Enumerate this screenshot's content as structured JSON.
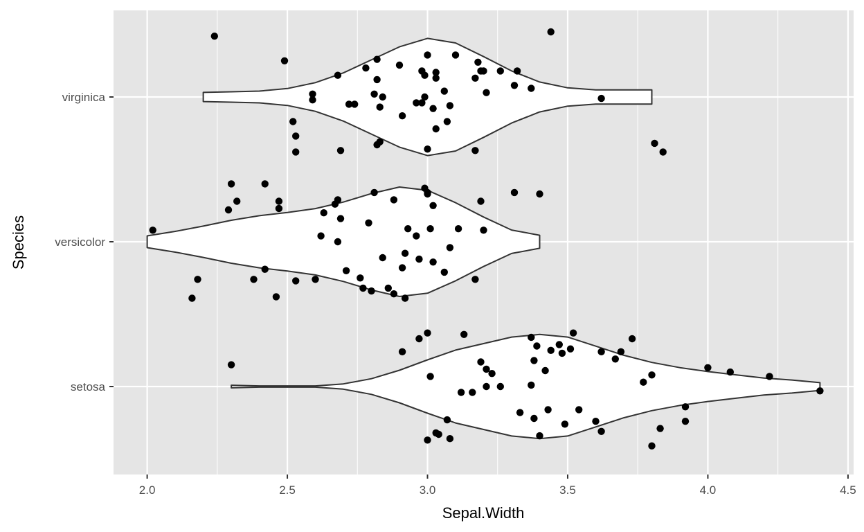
{
  "chart_data": {
    "type": "violin",
    "orientation": "horizontal",
    "title": "",
    "xlabel": "Sepal.Width",
    "ylabel": "Species",
    "xlim": [
      1.88,
      4.52
    ],
    "x_ticks": [
      2.0,
      2.5,
      3.0,
      3.5,
      4.0,
      4.5
    ],
    "x_tick_labels": [
      "2.0",
      "2.5",
      "3.0",
      "3.5",
      "4.0",
      "4.5"
    ],
    "categories": [
      "setosa",
      "versicolor",
      "virginica"
    ],
    "grid": true,
    "legend": "none",
    "colors": {
      "panel": "#e5e5e5",
      "grid": "#ffffff",
      "violin_fill": "#ffffff",
      "violin_outline": "#333333",
      "point": "#000000",
      "tick_text": "#4d4d4d"
    },
    "violins": [
      {
        "category": "setosa",
        "min": 2.3,
        "max": 4.4,
        "density": [
          [
            2.3,
            0.02
          ],
          [
            2.4,
            0.01
          ],
          [
            2.5,
            0.01
          ],
          [
            2.6,
            0.01
          ],
          [
            2.7,
            0.04
          ],
          [
            2.8,
            0.12
          ],
          [
            2.9,
            0.25
          ],
          [
            3.0,
            0.41
          ],
          [
            3.1,
            0.56
          ],
          [
            3.2,
            0.66
          ],
          [
            3.3,
            0.76
          ],
          [
            3.4,
            0.8
          ],
          [
            3.5,
            0.76
          ],
          [
            3.6,
            0.62
          ],
          [
            3.7,
            0.48
          ],
          [
            3.8,
            0.37
          ],
          [
            3.9,
            0.29
          ],
          [
            4.0,
            0.23
          ],
          [
            4.1,
            0.18
          ],
          [
            4.2,
            0.13
          ],
          [
            4.3,
            0.1
          ],
          [
            4.4,
            0.06
          ]
        ]
      },
      {
        "category": "versicolor",
        "min": 2.0,
        "max": 3.4,
        "density": [
          [
            2.0,
            0.09
          ],
          [
            2.1,
            0.16
          ],
          [
            2.2,
            0.24
          ],
          [
            2.3,
            0.33
          ],
          [
            2.4,
            0.4
          ],
          [
            2.5,
            0.45
          ],
          [
            2.6,
            0.51
          ],
          [
            2.7,
            0.61
          ],
          [
            2.8,
            0.74
          ],
          [
            2.9,
            0.84
          ],
          [
            3.0,
            0.79
          ],
          [
            3.1,
            0.6
          ],
          [
            3.2,
            0.38
          ],
          [
            3.3,
            0.18
          ],
          [
            3.4,
            0.1
          ]
        ]
      },
      {
        "category": "virginica",
        "min": 2.2,
        "max": 3.8,
        "density": [
          [
            2.2,
            0.07
          ],
          [
            2.3,
            0.08
          ],
          [
            2.4,
            0.09
          ],
          [
            2.5,
            0.13
          ],
          [
            2.6,
            0.22
          ],
          [
            2.7,
            0.37
          ],
          [
            2.8,
            0.57
          ],
          [
            2.9,
            0.77
          ],
          [
            3.0,
            0.9
          ],
          [
            3.1,
            0.83
          ],
          [
            3.2,
            0.62
          ],
          [
            3.3,
            0.4
          ],
          [
            3.4,
            0.23
          ],
          [
            3.5,
            0.14
          ],
          [
            3.6,
            0.11
          ],
          [
            3.7,
            0.11
          ],
          [
            3.8,
            0.11
          ]
        ]
      }
    ],
    "points": {
      "virginica": [
        [
          2.24,
          0.42
        ],
        [
          2.49,
          0.25
        ],
        [
          3.44,
          0.45
        ],
        [
          2.59,
          -0.02
        ],
        [
          2.59,
          0.02
        ],
        [
          2.52,
          -0.17
        ],
        [
          2.53,
          -0.27
        ],
        [
          2.53,
          -0.38
        ],
        [
          2.68,
          0.15
        ],
        [
          2.69,
          -0.37
        ],
        [
          2.72,
          -0.05
        ],
        [
          2.74,
          -0.05
        ],
        [
          2.78,
          0.2
        ],
        [
          2.81,
          0.02
        ],
        [
          2.82,
          0.12
        ],
        [
          2.82,
          0.26
        ],
        [
          2.83,
          -0.07
        ],
        [
          2.84,
          0
        ],
        [
          2.82,
          -0.33
        ],
        [
          2.83,
          -0.31
        ],
        [
          2.9,
          0.22
        ],
        [
          2.91,
          -0.13
        ],
        [
          2.96,
          -0.04
        ],
        [
          2.98,
          -0.04
        ],
        [
          2.98,
          0.18
        ],
        [
          2.99,
          0.15
        ],
        [
          2.99,
          0
        ],
        [
          3.0,
          0.29
        ],
        [
          3.0,
          -0.36
        ],
        [
          3.02,
          -0.08
        ],
        [
          3.03,
          0.13
        ],
        [
          3.03,
          0.17
        ],
        [
          3.03,
          -0.22
        ],
        [
          3.06,
          0.04
        ],
        [
          3.07,
          -0.17
        ],
        [
          3.08,
          -0.06
        ],
        [
          3.1,
          0.29
        ],
        [
          3.17,
          0.13
        ],
        [
          3.17,
          -0.37
        ],
        [
          3.18,
          0.24
        ],
        [
          3.19,
          0.18
        ],
        [
          3.2,
          0.18
        ],
        [
          3.21,
          0.03
        ],
        [
          3.26,
          0.18
        ],
        [
          3.31,
          0.08
        ],
        [
          3.32,
          0.18
        ],
        [
          3.37,
          0.06
        ],
        [
          3.62,
          -0.01
        ],
        [
          3.81,
          -0.32
        ],
        [
          3.84,
          -0.38
        ]
      ],
      "versicolor": [
        [
          2.02,
          0.08
        ],
        [
          2.16,
          -0.39
        ],
        [
          2.18,
          -0.26
        ],
        [
          2.29,
          0.22
        ],
        [
          2.3,
          0.4
        ],
        [
          2.32,
          0.28
        ],
        [
          2.38,
          -0.26
        ],
        [
          2.42,
          -0.19
        ],
        [
          2.42,
          0.4
        ],
        [
          2.47,
          0.28
        ],
        [
          2.47,
          0.23
        ],
        [
          2.46,
          -0.38
        ],
        [
          2.53,
          -0.27
        ],
        [
          2.6,
          -0.26
        ],
        [
          2.62,
          0.04
        ],
        [
          2.63,
          0.2
        ],
        [
          2.67,
          0.26
        ],
        [
          2.68,
          0.29
        ],
        [
          2.68,
          0.0
        ],
        [
          2.69,
          0.16
        ],
        [
          2.71,
          -0.2
        ],
        [
          2.76,
          -0.25
        ],
        [
          2.77,
          -0.32
        ],
        [
          2.79,
          0.13
        ],
        [
          2.8,
          -0.34
        ],
        [
          2.81,
          0.34
        ],
        [
          2.84,
          -0.11
        ],
        [
          2.86,
          -0.32
        ],
        [
          2.88,
          0.29
        ],
        [
          2.88,
          -0.36
        ],
        [
          2.91,
          -0.18
        ],
        [
          2.92,
          -0.39
        ],
        [
          2.92,
          -0.08
        ],
        [
          2.93,
          0.09
        ],
        [
          2.96,
          0.04
        ],
        [
          2.97,
          -0.12
        ],
        [
          2.99,
          0.37
        ],
        [
          3.0,
          0.33
        ],
        [
          3.0,
          0.34
        ],
        [
          3.01,
          0.09
        ],
        [
          3.02,
          0.25
        ],
        [
          3.02,
          -0.14
        ],
        [
          3.06,
          -0.21
        ],
        [
          3.08,
          -0.04
        ],
        [
          3.11,
          0.09
        ],
        [
          3.17,
          -0.26
        ],
        [
          3.19,
          0.28
        ],
        [
          3.2,
          0.08
        ],
        [
          3.31,
          0.34
        ],
        [
          3.4,
          0.33
        ]
      ],
      "setosa": [
        [
          2.3,
          0.15
        ],
        [
          2.91,
          0.24
        ],
        [
          2.97,
          0.33
        ],
        [
          3.0,
          0.37
        ],
        [
          3.01,
          0.07
        ],
        [
          3.12,
          -0.04
        ],
        [
          3.13,
          0.36
        ],
        [
          3.16,
          -0.04
        ],
        [
          3.19,
          0.17
        ],
        [
          3.21,
          0.12
        ],
        [
          3.23,
          0.09
        ],
        [
          3.21,
          0.0
        ],
        [
          3.03,
          -0.32
        ],
        [
          3.04,
          -0.33
        ],
        [
          3.0,
          -0.37
        ],
        [
          3.07,
          -0.23
        ],
        [
          3.08,
          -0.36
        ],
        [
          3.26,
          0.0
        ],
        [
          3.33,
          -0.18
        ],
        [
          3.37,
          0.34
        ],
        [
          3.38,
          0.18
        ],
        [
          3.38,
          -0.22
        ],
        [
          3.37,
          0.01
        ],
        [
          3.39,
          0.28
        ],
        [
          3.4,
          -0.34
        ],
        [
          3.42,
          0.11
        ],
        [
          3.43,
          -0.16
        ],
        [
          3.44,
          0.25
        ],
        [
          3.47,
          0.29
        ],
        [
          3.48,
          0.23
        ],
        [
          3.49,
          -0.26
        ],
        [
          3.52,
          0.37
        ],
        [
          3.51,
          0.26
        ],
        [
          3.54,
          -0.16
        ],
        [
          3.6,
          -0.24
        ],
        [
          3.62,
          -0.31
        ],
        [
          3.62,
          0.24
        ],
        [
          3.67,
          0.19
        ],
        [
          3.69,
          0.24
        ],
        [
          3.73,
          0.33
        ],
        [
          3.77,
          0.03
        ],
        [
          3.8,
          0.08
        ],
        [
          3.8,
          -0.41
        ],
        [
          3.83,
          -0.29
        ],
        [
          3.92,
          -0.14
        ],
        [
          3.92,
          -0.24
        ],
        [
          4.0,
          0.13
        ],
        [
          4.08,
          0.1
        ],
        [
          4.22,
          0.07
        ],
        [
          4.4,
          -0.03
        ]
      ]
    }
  }
}
